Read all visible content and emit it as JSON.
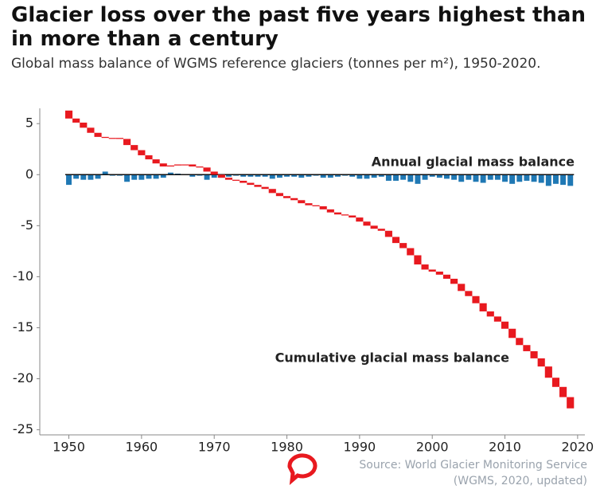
{
  "chart_data": {
    "type": "bar",
    "title": "Glacier loss over the past five years highest than in more than a century",
    "subtitle": "Global mass balance of WGMS reference glaciers (tonnes per m²), 1950-2020.",
    "source": "Source: World Glacier Monitoring Service (WGMS, 2020, updated)",
    "x": [
      1950,
      1951,
      1952,
      1953,
      1954,
      1955,
      1956,
      1957,
      1958,
      1959,
      1960,
      1961,
      1962,
      1963,
      1964,
      1965,
      1966,
      1967,
      1968,
      1969,
      1970,
      1971,
      1972,
      1973,
      1974,
      1975,
      1976,
      1977,
      1978,
      1979,
      1980,
      1981,
      1982,
      1983,
      1984,
      1985,
      1986,
      1987,
      1988,
      1989,
      1990,
      1991,
      1992,
      1993,
      1994,
      1995,
      1996,
      1997,
      1998,
      1999,
      2000,
      2001,
      2002,
      2003,
      2004,
      2005,
      2006,
      2007,
      2008,
      2009,
      2010,
      2011,
      2012,
      2013,
      2014,
      2015,
      2016,
      2017,
      2018,
      2019
    ],
    "series": [
      {
        "name": "Annual glacial mass balance",
        "color": "#1f78b4",
        "values": [
          -1.0,
          -0.4,
          -0.5,
          -0.5,
          -0.4,
          0.3,
          -0.1,
          -0.1,
          -0.7,
          -0.5,
          -0.5,
          -0.4,
          -0.4,
          -0.3,
          0.2,
          0.1,
          0.0,
          -0.2,
          -0.1,
          -0.5,
          -0.3,
          -0.3,
          -0.2,
          -0.1,
          -0.2,
          -0.2,
          -0.2,
          -0.2,
          -0.4,
          -0.3,
          -0.2,
          -0.2,
          -0.3,
          -0.2,
          -0.1,
          -0.3,
          -0.3,
          -0.2,
          -0.1,
          -0.2,
          -0.4,
          -0.4,
          -0.3,
          -0.2,
          -0.6,
          -0.6,
          -0.5,
          -0.7,
          -0.9,
          -0.5,
          -0.2,
          -0.3,
          -0.4,
          -0.5,
          -0.7,
          -0.5,
          -0.7,
          -0.8,
          -0.5,
          -0.5,
          -0.7,
          -0.9,
          -0.7,
          -0.6,
          -0.7,
          -0.8,
          -1.1,
          -0.9,
          -1.0,
          -1.1
        ]
      },
      {
        "name": "Cumulative glacial mass balance",
        "color": "#e8191f",
        "values": [
          5.5,
          5.1,
          4.6,
          4.1,
          3.7,
          3.6,
          3.6,
          3.5,
          2.9,
          2.4,
          1.9,
          1.5,
          1.1,
          0.8,
          0.9,
          1.0,
          1.0,
          0.8,
          0.7,
          0.3,
          0.0,
          -0.3,
          -0.5,
          -0.6,
          -0.8,
          -1.0,
          -1.2,
          -1.4,
          -1.8,
          -2.1,
          -2.3,
          -2.5,
          -2.8,
          -3.0,
          -3.1,
          -3.4,
          -3.7,
          -3.9,
          -4.0,
          -4.2,
          -4.6,
          -5.0,
          -5.3,
          -5.5,
          -6.1,
          -6.7,
          -7.2,
          -7.9,
          -8.8,
          -9.3,
          -9.5,
          -9.8,
          -10.2,
          -10.7,
          -11.4,
          -11.9,
          -12.6,
          -13.4,
          -13.9,
          -14.4,
          -15.1,
          -16.0,
          -16.7,
          -17.3,
          -18.0,
          -18.8,
          -19.9,
          -20.8,
          -21.8,
          -22.9
        ]
      }
    ],
    "xlim": [
      1946,
      2021
    ],
    "xticks": [
      1950,
      1960,
      1970,
      1980,
      1990,
      2000,
      2010,
      2020
    ],
    "ylim": [
      -25.5,
      6.5
    ],
    "yticks": [
      5,
      0,
      -5,
      -10,
      -15,
      -20,
      -25
    ]
  }
}
